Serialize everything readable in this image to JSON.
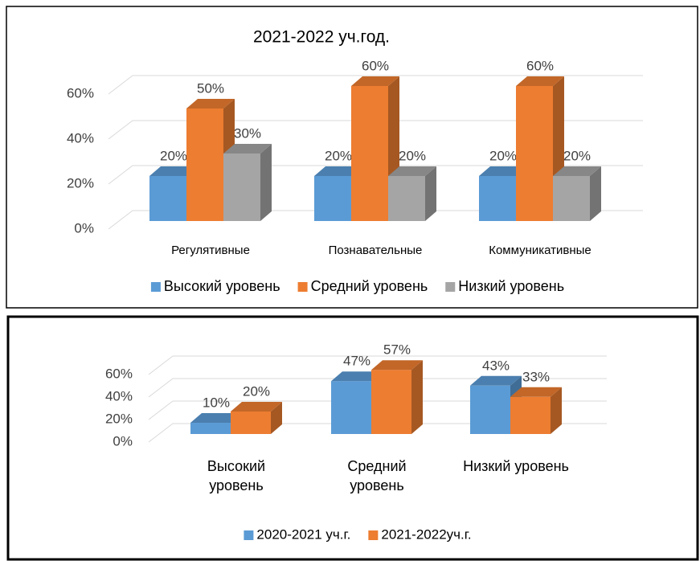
{
  "chart_data": [
    {
      "type": "bar",
      "title": "2021-2022 уч.год.",
      "categories": [
        "Регулятивные",
        "Познавательные",
        "Коммуникативные"
      ],
      "series": [
        {
          "name": "Высокий уровень",
          "color": "#5b9bd5",
          "values": [
            20,
            20,
            20
          ],
          "value_labels": [
            "20%",
            "20%",
            "20%"
          ]
        },
        {
          "name": "Средний уровень",
          "color": "#ed7d31",
          "values": [
            50,
            60,
            60
          ],
          "value_labels": [
            "50%",
            "60%",
            "60%"
          ]
        },
        {
          "name": "Низкий уровень",
          "color": "#a5a5a5",
          "values": [
            30,
            20,
            20
          ],
          "value_labels": [
            "30%",
            "20%",
            "20%"
          ]
        }
      ],
      "ylim": [
        0,
        60
      ],
      "yticks": [
        {
          "value": 0,
          "label": "0%"
        },
        {
          "value": 20,
          "label": "20%"
        },
        {
          "value": 40,
          "label": "40%"
        },
        {
          "value": 60,
          "label": "60%"
        }
      ],
      "grid": true,
      "legend": "bottom"
    },
    {
      "type": "bar",
      "categories": [
        "Высокий\nуровень",
        "Средний\nуровень",
        "Низкий уровень"
      ],
      "series": [
        {
          "name": "2020-2021 уч.г.",
          "color": "#5b9bd5",
          "values": [
            10,
            47,
            43
          ],
          "value_labels": [
            "10%",
            "47%",
            "43%"
          ]
        },
        {
          "name": "2021-2022уч.г.",
          "color": "#ed7d31",
          "values": [
            20,
            57,
            33
          ],
          "value_labels": [
            "20%",
            "57%",
            "33%"
          ]
        }
      ],
      "ylim": [
        0,
        60
      ],
      "yticks": [
        {
          "value": 0,
          "label": "0%"
        },
        {
          "value": 20,
          "label": "20%"
        },
        {
          "value": 40,
          "label": "40%"
        },
        {
          "value": 60,
          "label": "60%"
        }
      ],
      "grid": true,
      "legend": "bottom"
    }
  ]
}
